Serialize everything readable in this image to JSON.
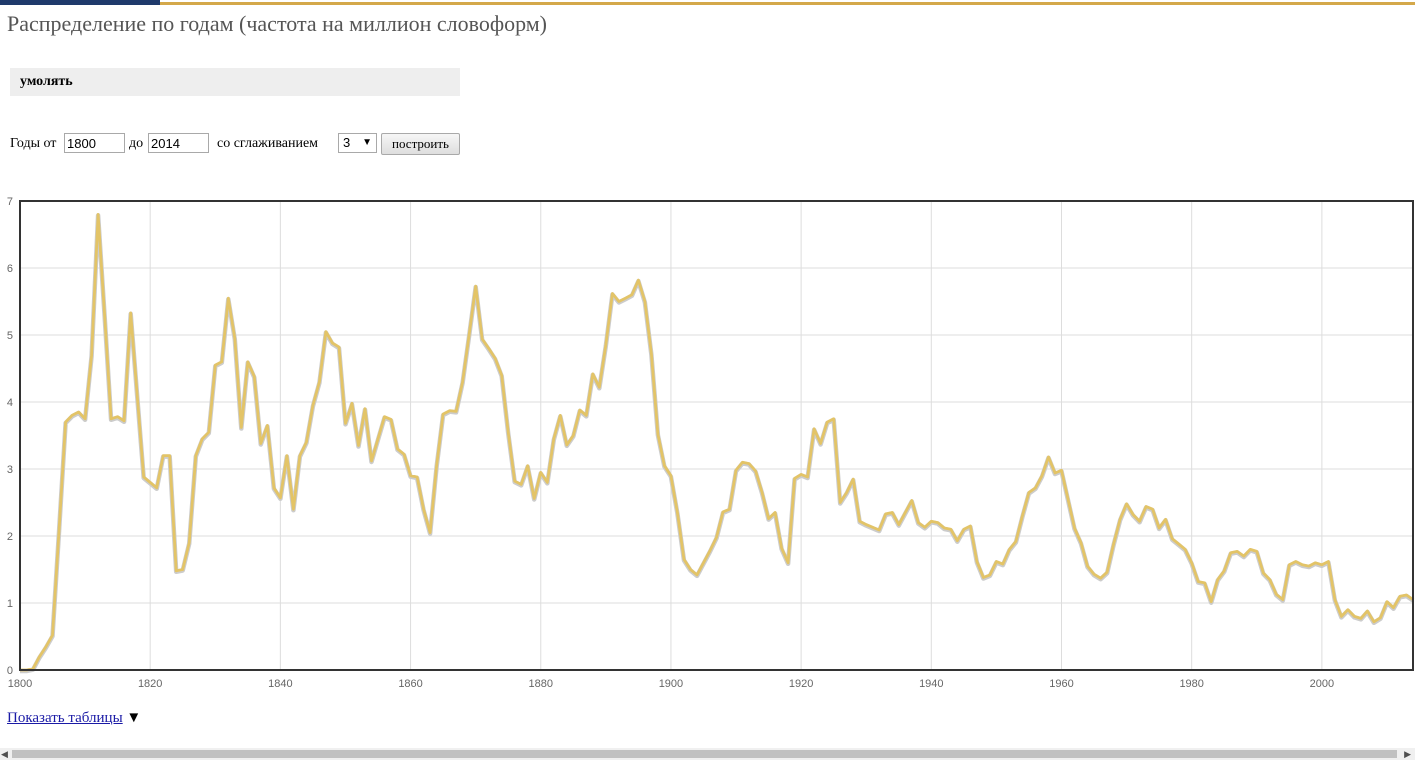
{
  "page": {
    "title": "Распределение по годам (частота на миллион словоформ)"
  },
  "query": {
    "word": "умолять"
  },
  "controls": {
    "years_label": "Годы от",
    "from_value": "1800",
    "to_label": "до",
    "to_value": "2014",
    "smoothing_label": "со сглаживанием",
    "smoothing_value": "3",
    "build_label": "построить"
  },
  "footer": {
    "show_tables_label": "Показать таблицы",
    "toggle_glyph": "▼"
  },
  "colors": {
    "line": "#e3c467",
    "grid": "#dddddd",
    "frame": "#333333"
  },
  "chart_data": {
    "type": "line",
    "title": "",
    "xlabel": "",
    "ylabel": "",
    "xlim": [
      1800,
      2014
    ],
    "ylim": [
      0,
      7
    ],
    "x_ticks": [
      "1800",
      "1820",
      "1840",
      "1860",
      "1880",
      "1900",
      "1920",
      "1940",
      "1960",
      "1980",
      "2000"
    ],
    "y_ticks": [
      "0",
      "1",
      "2",
      "3",
      "4",
      "5",
      "6",
      "7"
    ],
    "grid": true,
    "legend": "none",
    "series": [
      {
        "x_start": 1800,
        "x_step": 1,
        "values": [
          0.0,
          0.0,
          0.02,
          0.2,
          0.35,
          0.52,
          2.1,
          3.7,
          3.8,
          3.85,
          3.75,
          4.7,
          6.8,
          5.3,
          3.75,
          3.78,
          3.72,
          5.33,
          4.1,
          2.88,
          2.8,
          2.72,
          3.2,
          3.2,
          1.48,
          1.5,
          1.9,
          3.2,
          3.45,
          3.55,
          4.55,
          4.6,
          5.55,
          4.95,
          3.62,
          4.6,
          4.38,
          3.38,
          3.65,
          2.72,
          2.57,
          3.2,
          2.4,
          3.2,
          3.4,
          3.95,
          4.3,
          5.05,
          4.88,
          4.82,
          3.68,
          3.98,
          3.35,
          3.9,
          3.12,
          3.45,
          3.78,
          3.74,
          3.3,
          3.22,
          2.9,
          2.88,
          2.4,
          2.05,
          3.05,
          3.82,
          3.87,
          3.86,
          4.3,
          5.0,
          5.73,
          4.94,
          4.8,
          4.65,
          4.4,
          3.55,
          2.82,
          2.77,
          3.05,
          2.56,
          2.95,
          2.8,
          3.45,
          3.8,
          3.36,
          3.5,
          3.88,
          3.8,
          4.42,
          4.22,
          4.85,
          5.62,
          5.5,
          5.55,
          5.6,
          5.82,
          5.5,
          4.72,
          3.52,
          3.05,
          2.9,
          2.35,
          1.65,
          1.5,
          1.42,
          1.6,
          1.78,
          1.98,
          2.36,
          2.4,
          2.98,
          3.1,
          3.08,
          2.97,
          2.65,
          2.26,
          2.35,
          1.82,
          1.6,
          2.86,
          2.92,
          2.88,
          3.6,
          3.38,
          3.7,
          3.75,
          2.5,
          2.65,
          2.85,
          2.22,
          2.17,
          2.13,
          2.09,
          2.33,
          2.35,
          2.17,
          2.35,
          2.53,
          2.2,
          2.13,
          2.22,
          2.2,
          2.12,
          2.1,
          1.93,
          2.1,
          2.15,
          1.62,
          1.38,
          1.42,
          1.62,
          1.58,
          1.8,
          1.92,
          2.3,
          2.65,
          2.72,
          2.9,
          3.18,
          2.94,
          2.98,
          2.55,
          2.12,
          1.9,
          1.55,
          1.43,
          1.37,
          1.46,
          1.88,
          2.25,
          2.48,
          2.32,
          2.22,
          2.44,
          2.4,
          2.12,
          2.25,
          1.96,
          1.88,
          1.8,
          1.6,
          1.32,
          1.3,
          1.02,
          1.35,
          1.48,
          1.75,
          1.77,
          1.7,
          1.8,
          1.77,
          1.45,
          1.35,
          1.13,
          1.05,
          1.57,
          1.62,
          1.57,
          1.55,
          1.6,
          1.57,
          1.62,
          1.05,
          0.8,
          0.9,
          0.8,
          0.77,
          0.88,
          0.72,
          0.78,
          1.02,
          0.93,
          1.1,
          1.12,
          1.05
        ]
      }
    ]
  }
}
